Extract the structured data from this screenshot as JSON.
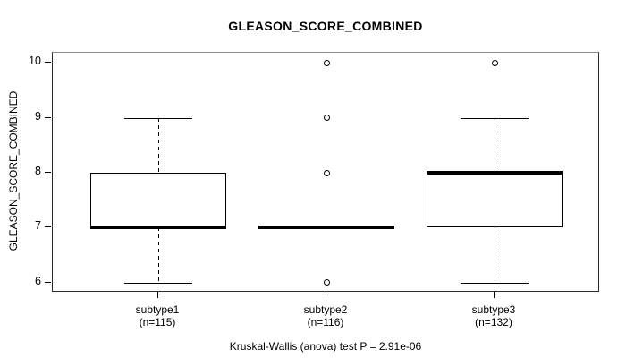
{
  "chart_data": {
    "type": "boxplot",
    "title": "GLEASON_SCORE_COMBINED",
    "ylabel": "GLEASON_SCORE_COMBINED",
    "xlabel": "",
    "caption": "Kruskal-Wallis (anova) test P = 2.91e-06",
    "yticks": [
      6,
      7,
      8,
      9,
      10
    ],
    "ylim": [
      5.82,
      10.18
    ],
    "grid": false,
    "legend": null,
    "groups": [
      {
        "label": "subtype1",
        "n_label": "(n=115)",
        "n": 115,
        "whisker_low": 6,
        "q1": 7,
        "median": 7,
        "q3": 8,
        "whisker_high": 9,
        "outliers": []
      },
      {
        "label": "subtype2",
        "n_label": "(n=116)",
        "n": 116,
        "whisker_low": 7,
        "q1": 7,
        "median": 7,
        "q3": 7,
        "whisker_high": 7,
        "outliers": [
          6,
          8,
          9,
          10
        ]
      },
      {
        "label": "subtype3",
        "n_label": "(n=132)",
        "n": 132,
        "whisker_low": 6,
        "q1": 7,
        "median": 8,
        "q3": 8,
        "whisker_high": 9,
        "outliers": [
          10
        ]
      }
    ],
    "colors": {
      "line": "#000000",
      "box_fill": "#ffffff",
      "background": "#ffffff",
      "text": "#000000"
    }
  }
}
